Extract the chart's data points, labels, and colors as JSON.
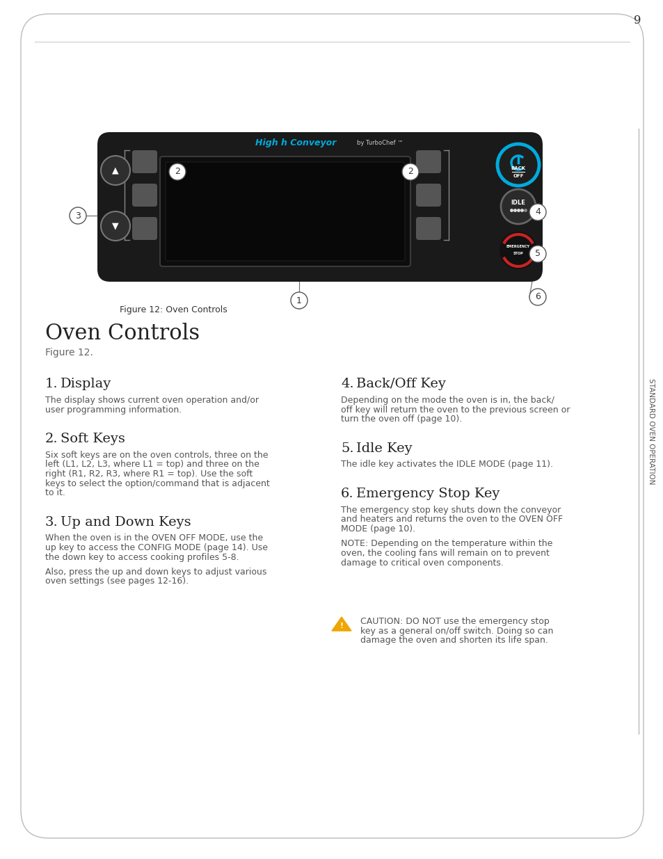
{
  "page_number": "9",
  "bg_color": "#ffffff",
  "sidebar_text": "STANDARD OVEN OPERATION",
  "sidebar_color": "#555555",
  "figure_caption": "Figure 12: Oven Controls",
  "section_title": "Oven Controls",
  "section_subtitle": "Figure 12.",
  "sections": [
    {
      "number": "1.",
      "heading": "Display",
      "body": "The display shows current oven operation and/or\nuser programming information."
    },
    {
      "number": "2.",
      "heading": "Soft Keys",
      "body": "Six soft keys are on the oven controls, three on the\nleft (L1, L2, L3, where L1 = top) and three on the\nright (R1, R2, R3, where R1 = top). Use the soft\nkeys to select the option/command that is adjacent\nto it."
    },
    {
      "number": "3.",
      "heading": "Up and Down Keys",
      "body": "When the oven is in the OVEN OFF MODE, use the\nup key to access the CONFIG MODE (page 14). Use\nthe down key to access cooking profiles 5-8.\n\nAlso, press the up and down keys to adjust various\noven settings (see pages 12-16)."
    },
    {
      "number": "4.",
      "heading": "Back/Off Key",
      "body": "Depending on the mode the oven is in, the back/\noff key will return the oven to the previous screen or\nturn the oven off (page 10)."
    },
    {
      "number": "5.",
      "heading": "Idle Key",
      "body": "The idle key activates the IDLE MODE (page 11)."
    },
    {
      "number": "6.",
      "heading": "Emergency Stop Key",
      "body": "The emergency stop key shuts down the conveyor\nand heaters and returns the oven to the OVEN OFF\nMODE (page 10).\n\nNOTE: Depending on the temperature within the\noven, the cooling fans will remain on to prevent\ndamage to critical oven components."
    }
  ],
  "caution_text": "CAUTION: DO NOT use the emergency stop\nkey as a general on/off switch. Doing so can\ndamage the oven and shorten its life span.",
  "oven_bg": "#1a1a1a",
  "display_color": "#111111",
  "softkey_color": "#555555",
  "back_btn_color": "#00aadd",
  "idle_btn_color": "#555555",
  "emergency_color": "#cc2222",
  "conveyor_brand": "High h Conveyor",
  "conveyor_sub": "by TurboChef ™",
  "brand_color": "#00aadd"
}
